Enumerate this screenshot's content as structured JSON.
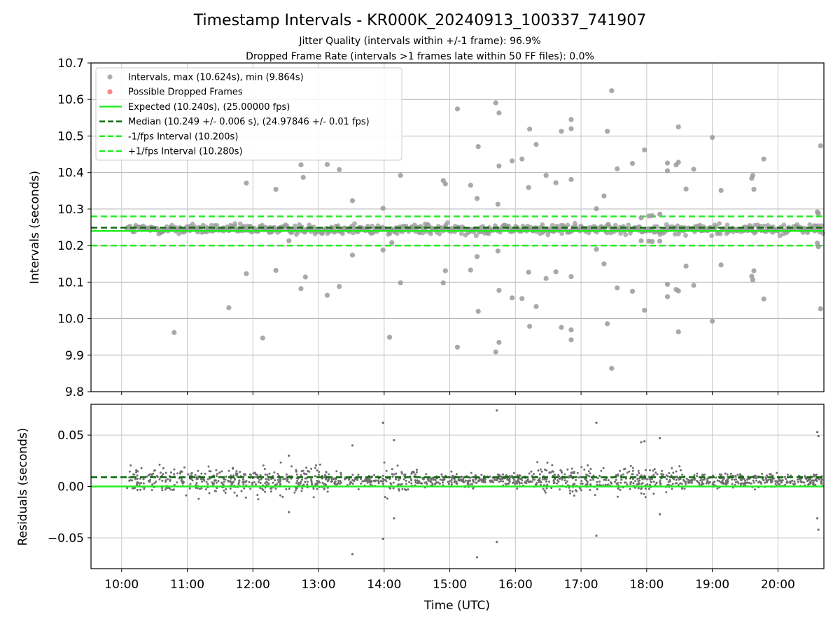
{
  "chart_data": [
    {
      "type": "scatter",
      "title": "Timestamp Intervals - KR000K_20240913_100337_741907",
      "subtitle": [
        "Jitter Quality (intervals within +/-1 frame): 96.9%",
        "Dropped Frame Rate (intervals >1 frames late within 50 FF files): 0.0%"
      ],
      "xlabel": "",
      "ylabel": "Intervals (seconds)",
      "xlim": [
        "09:32",
        "20:42"
      ],
      "ylim": [
        9.8,
        10.7
      ],
      "yticks": [
        "9.8",
        "9.9",
        "10.0",
        "10.1",
        "10.2",
        "10.3",
        "10.4",
        "10.5",
        "10.6",
        "10.7"
      ],
      "grid": true,
      "legend_position": "upper-left",
      "legend": [
        {
          "label": "Intervals, max (10.624s), min (9.864s)",
          "kind": "marker",
          "color": "#a0a0a0"
        },
        {
          "label": "Possible Dropped Frames",
          "kind": "marker",
          "color": "#ff7070"
        },
        {
          "label": "Expected (10.240s), (25.00000 fps)",
          "kind": "solid",
          "color": "#22ee22"
        },
        {
          "label": "Median (10.249 +/- 0.006 s), (24.97846 +/- 0.01 fps)",
          "kind": "dashed",
          "color": "#0b6b0b"
        },
        {
          "label": "-1/fps Interval (10.200s)",
          "kind": "dashed",
          "color": "#22ee22"
        },
        {
          "label": "+1/fps Interval (10.280s)",
          "kind": "dashed",
          "color": "#22ee22"
        }
      ],
      "reference_lines": {
        "expected": 10.24,
        "median": 10.249,
        "minus_one_frame": 10.2,
        "plus_one_frame": 10.28
      },
      "band": {
        "start": "10:05",
        "end": "20:41",
        "center": 10.245,
        "spread": 0.013
      },
      "outliers": [
        {
          "x": "10:48",
          "y": 9.962
        },
        {
          "x": "11:38",
          "y": 10.03
        },
        {
          "x": "11:54",
          "y": 10.371
        },
        {
          "x": "11:54",
          "y": 10.123
        },
        {
          "x": "12:09",
          "y": 9.947
        },
        {
          "x": "12:21",
          "y": 10.354
        },
        {
          "x": "12:21",
          "y": 10.132
        },
        {
          "x": "12:33",
          "y": 10.213
        },
        {
          "x": "12:44",
          "y": 10.421
        },
        {
          "x": "12:44",
          "y": 10.082
        },
        {
          "x": "12:46",
          "y": 10.387
        },
        {
          "x": "12:48",
          "y": 10.114
        },
        {
          "x": "13:08",
          "y": 10.422
        },
        {
          "x": "13:08",
          "y": 10.064
        },
        {
          "x": "13:19",
          "y": 10.408
        },
        {
          "x": "13:19",
          "y": 10.088
        },
        {
          "x": "13:31",
          "y": 10.323
        },
        {
          "x": "13:31",
          "y": 10.174
        },
        {
          "x": "13:59",
          "y": 10.302
        },
        {
          "x": "13:59",
          "y": 10.188
        },
        {
          "x": "14:05",
          "y": 9.949
        },
        {
          "x": "14:07",
          "y": 10.208
        },
        {
          "x": "14:15",
          "y": 10.392
        },
        {
          "x": "14:15",
          "y": 10.098
        },
        {
          "x": "14:54",
          "y": 10.378
        },
        {
          "x": "14:54",
          "y": 10.098
        },
        {
          "x": "14:56",
          "y": 10.369
        },
        {
          "x": "14:56",
          "y": 10.131
        },
        {
          "x": "15:07",
          "y": 10.574
        },
        {
          "x": "15:07",
          "y": 9.922
        },
        {
          "x": "15:19",
          "y": 10.365
        },
        {
          "x": "15:19",
          "y": 10.133
        },
        {
          "x": "15:25",
          "y": 10.329
        },
        {
          "x": "15:25",
          "y": 10.17
        },
        {
          "x": "15:26",
          "y": 10.471
        },
        {
          "x": "15:26",
          "y": 10.02
        },
        {
          "x": "15:42",
          "y": 10.591
        },
        {
          "x": "15:42",
          "y": 9.909
        },
        {
          "x": "15:44",
          "y": 10.313
        },
        {
          "x": "15:44",
          "y": 10.185
        },
        {
          "x": "15:45",
          "y": 10.418
        },
        {
          "x": "15:45",
          "y": 10.077
        },
        {
          "x": "15:45",
          "y": 10.563
        },
        {
          "x": "15:45",
          "y": 9.935
        },
        {
          "x": "15:57",
          "y": 10.432
        },
        {
          "x": "15:57",
          "y": 10.057
        },
        {
          "x": "16:06",
          "y": 10.437
        },
        {
          "x": "16:06",
          "y": 10.055
        },
        {
          "x": "16:12",
          "y": 10.359
        },
        {
          "x": "16:12",
          "y": 10.127
        },
        {
          "x": "16:13",
          "y": 10.519
        },
        {
          "x": "16:13",
          "y": 9.979
        },
        {
          "x": "16:19",
          "y": 10.477
        },
        {
          "x": "16:19",
          "y": 10.033
        },
        {
          "x": "16:28",
          "y": 10.392
        },
        {
          "x": "16:28",
          "y": 10.11
        },
        {
          "x": "16:37",
          "y": 10.372
        },
        {
          "x": "16:37",
          "y": 10.128
        },
        {
          "x": "16:42",
          "y": 10.513
        },
        {
          "x": "16:42",
          "y": 9.976
        },
        {
          "x": "16:51",
          "y": 10.545
        },
        {
          "x": "16:51",
          "y": 9.942
        },
        {
          "x": "16:51",
          "y": 10.52
        },
        {
          "x": "16:51",
          "y": 9.969
        },
        {
          "x": "16:51",
          "y": 10.381
        },
        {
          "x": "16:51",
          "y": 10.115
        },
        {
          "x": "17:14",
          "y": 10.301
        },
        {
          "x": "17:14",
          "y": 10.19
        },
        {
          "x": "17:21",
          "y": 10.336
        },
        {
          "x": "17:21",
          "y": 10.15
        },
        {
          "x": "17:24",
          "y": 10.513
        },
        {
          "x": "17:24",
          "y": 9.986
        },
        {
          "x": "17:28",
          "y": 10.624
        },
        {
          "x": "17:28",
          "y": 9.864
        },
        {
          "x": "17:33",
          "y": 10.41
        },
        {
          "x": "17:33",
          "y": 10.084
        },
        {
          "x": "17:47",
          "y": 10.425
        },
        {
          "x": "17:47",
          "y": 10.075
        },
        {
          "x": "17:55",
          "y": 10.276
        },
        {
          "x": "17:55",
          "y": 10.213
        },
        {
          "x": "17:58",
          "y": 10.462
        },
        {
          "x": "17:58",
          "y": 10.023
        },
        {
          "x": "18:02",
          "y": 10.281
        },
        {
          "x": "18:02",
          "y": 10.212
        },
        {
          "x": "18:05",
          "y": 10.282
        },
        {
          "x": "18:05",
          "y": 10.211
        },
        {
          "x": "18:12",
          "y": 10.286
        },
        {
          "x": "18:12",
          "y": 10.212
        },
        {
          "x": "18:19",
          "y": 10.426
        },
        {
          "x": "18:19",
          "y": 10.06
        },
        {
          "x": "18:19",
          "y": 10.405
        },
        {
          "x": "18:19",
          "y": 10.094
        },
        {
          "x": "18:27",
          "y": 10.421
        },
        {
          "x": "18:27",
          "y": 10.08
        },
        {
          "x": "18:29",
          "y": 10.428
        },
        {
          "x": "18:29",
          "y": 10.076
        },
        {
          "x": "18:29",
          "y": 10.525
        },
        {
          "x": "18:29",
          "y": 9.964
        },
        {
          "x": "18:36",
          "y": 10.355
        },
        {
          "x": "18:36",
          "y": 10.144
        },
        {
          "x": "18:43",
          "y": 10.409
        },
        {
          "x": "18:43",
          "y": 10.091
        },
        {
          "x": "19:00",
          "y": 10.496
        },
        {
          "x": "19:00",
          "y": 9.993
        },
        {
          "x": "19:08",
          "y": 10.351
        },
        {
          "x": "19:08",
          "y": 10.147
        },
        {
          "x": "19:36",
          "y": 10.384
        },
        {
          "x": "19:36",
          "y": 10.116
        },
        {
          "x": "19:37",
          "y": 10.392
        },
        {
          "x": "19:37",
          "y": 10.106
        },
        {
          "x": "19:38",
          "y": 10.354
        },
        {
          "x": "19:38",
          "y": 10.131
        },
        {
          "x": "19:47",
          "y": 10.437
        },
        {
          "x": "19:47",
          "y": 10.054
        },
        {
          "x": "20:36",
          "y": 10.292
        },
        {
          "x": "20:36",
          "y": 10.207
        },
        {
          "x": "20:37",
          "y": 10.288
        },
        {
          "x": "20:37",
          "y": 10.197
        },
        {
          "x": "20:39",
          "y": 10.473
        },
        {
          "x": "20:39",
          "y": 10.027
        }
      ]
    },
    {
      "type": "scatter",
      "title": "",
      "xlabel": "Time (UTC)",
      "ylabel": "Residuals (seconds)",
      "xlim": [
        "09:32",
        "20:42"
      ],
      "xticks": [
        "10:00",
        "11:00",
        "12:00",
        "13:00",
        "14:00",
        "15:00",
        "16:00",
        "17:00",
        "18:00",
        "19:00",
        "20:00"
      ],
      "ylim": [
        -0.08,
        0.08
      ],
      "yticks": [
        "−0.05",
        "0.00",
        "0.05"
      ],
      "grid": true,
      "reference_lines": {
        "zero": 0.0,
        "median": 0.009
      },
      "band": {
        "start": "10:05",
        "end": "20:41",
        "center": 0.006,
        "spread": 0.006,
        "spread_wide": 0.012
      },
      "outliers": [
        {
          "x": "13:31",
          "y": -0.066
        },
        {
          "x": "13:31",
          "y": 0.04
        },
        {
          "x": "13:59",
          "y": 0.062
        },
        {
          "x": "13:59",
          "y": -0.051
        },
        {
          "x": "14:09",
          "y": 0.045
        },
        {
          "x": "14:09",
          "y": -0.031
        },
        {
          "x": "15:25",
          "y": -0.069
        },
        {
          "x": "15:43",
          "y": 0.074
        },
        {
          "x": "15:43",
          "y": -0.054
        },
        {
          "x": "17:14",
          "y": 0.062
        },
        {
          "x": "17:14",
          "y": -0.048
        },
        {
          "x": "18:12",
          "y": 0.047
        },
        {
          "x": "18:12",
          "y": -0.027
        },
        {
          "x": "20:36",
          "y": 0.053
        },
        {
          "x": "20:37",
          "y": 0.049
        },
        {
          "x": "20:36",
          "y": -0.031
        },
        {
          "x": "20:37",
          "y": -0.042
        },
        {
          "x": "12:33",
          "y": -0.025
        },
        {
          "x": "12:33",
          "y": 0.03
        },
        {
          "x": "17:55",
          "y": 0.043
        },
        {
          "x": "17:58",
          "y": 0.044
        }
      ]
    }
  ]
}
